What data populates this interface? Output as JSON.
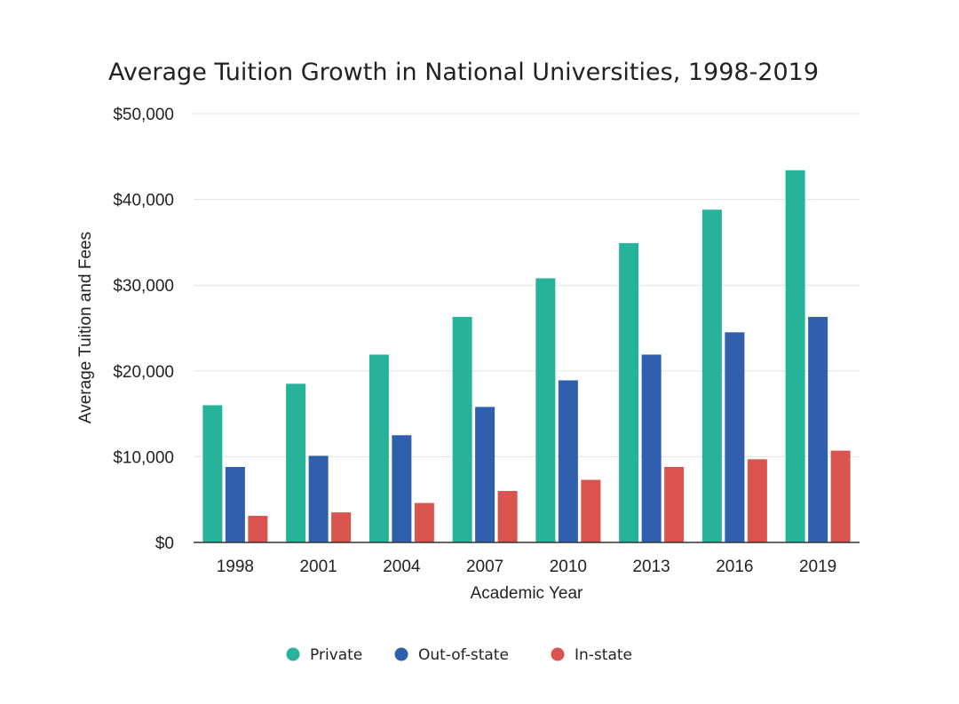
{
  "chart_data": {
    "type": "bar",
    "title": "Average Tuition Growth in National Universities, 1998-2019",
    "xlabel": "Academic Year",
    "ylabel": "Average Tuition and Fees",
    "categories": [
      "1998",
      "2001",
      "2004",
      "2007",
      "2010",
      "2013",
      "2016",
      "2019"
    ],
    "series": [
      {
        "name": "Private",
        "color": "#26b39a",
        "values": [
          16000,
          18500,
          21900,
          26300,
          30800,
          34900,
          38800,
          43400
        ]
      },
      {
        "name": "Out-of-state",
        "color": "#2f5fad",
        "values": [
          8800,
          10100,
          12500,
          15800,
          18900,
          21900,
          24500,
          26300
        ]
      },
      {
        "name": "In-state",
        "color": "#d9534f",
        "values": [
          3100,
          3500,
          4600,
          6000,
          7300,
          8800,
          9700,
          10700
        ]
      }
    ],
    "ylim": [
      0,
      50000
    ],
    "y_ticks": [
      0,
      10000,
      20000,
      30000,
      40000,
      50000
    ],
    "y_tick_labels": [
      "$0",
      "$10,000",
      "$20,000",
      "$30,000",
      "$40,000",
      "$50,000"
    ],
    "grid": true,
    "legend_position": "bottom"
  }
}
